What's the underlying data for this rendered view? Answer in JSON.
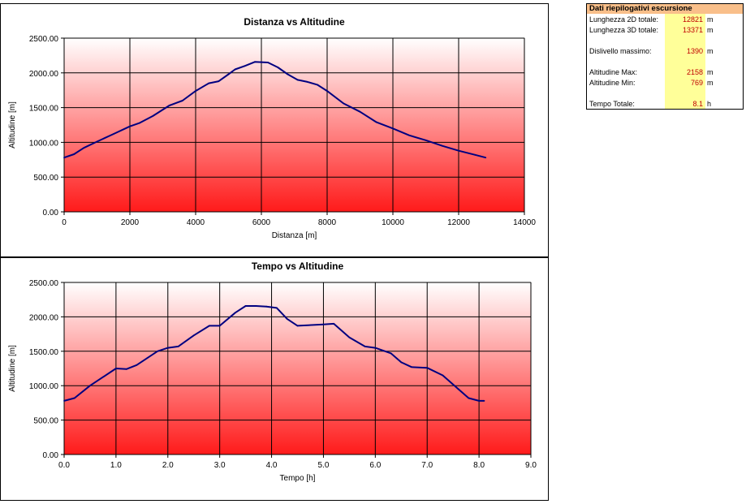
{
  "colors": {
    "line": "#000080",
    "grad_top": "#ffffff",
    "grad_bottom": "#ff1a1a",
    "summary_header": "#f9bf8a",
    "summary_values_bg": "#ffff99",
    "summary_value_text": "#c00000"
  },
  "chart_data": [
    {
      "type": "line",
      "title": "Distanza vs Altitudine",
      "xlabel": "Distanza [m]",
      "ylabel": "Altitudine [m]",
      "xlim": [
        0,
        14000
      ],
      "ylim": [
        0,
        2500
      ],
      "xticks": [
        "0",
        "2000",
        "4000",
        "6000",
        "8000",
        "10000",
        "12000",
        "14000"
      ],
      "yticks": [
        "0.00",
        "500.00",
        "1000.00",
        "1500.00",
        "2000.00",
        "2500.00"
      ],
      "grid": true,
      "series": [
        {
          "x": [
            0,
            300,
            600,
            1000,
            1500,
            2000,
            2300,
            2700,
            3200,
            3600,
            4000,
            4400,
            4700,
            5000,
            5200,
            5500,
            5800,
            6200,
            6500,
            6800,
            7100,
            7400,
            7700,
            8000,
            8500,
            9000,
            9500,
            10000,
            10500,
            11000,
            11500,
            12000,
            12500,
            12821
          ],
          "y": [
            780,
            830,
            920,
            1010,
            1120,
            1230,
            1280,
            1380,
            1530,
            1600,
            1740,
            1850,
            1880,
            1980,
            2050,
            2100,
            2158,
            2150,
            2080,
            1980,
            1900,
            1870,
            1830,
            1740,
            1560,
            1440,
            1290,
            1200,
            1100,
            1030,
            950,
            880,
            820,
            780
          ]
        }
      ]
    },
    {
      "type": "line",
      "title": "Tempo vs Altitudine",
      "xlabel": "Tempo [h]",
      "ylabel": "Altitudine [m]",
      "xlim": [
        0,
        9
      ],
      "ylim": [
        0,
        2500
      ],
      "xticks": [
        "0.0",
        "1.0",
        "2.0",
        "3.0",
        "4.0",
        "5.0",
        "6.0",
        "7.0",
        "8.0",
        "9.0"
      ],
      "yticks": [
        "0.00",
        "500.00",
        "1000.00",
        "1500.00",
        "2000.00",
        "2500.00"
      ],
      "grid": true,
      "series": [
        {
          "x": [
            0,
            0.2,
            0.5,
            0.7,
            1.0,
            1.2,
            1.4,
            1.6,
            1.8,
            2.0,
            2.2,
            2.5,
            2.8,
            3.0,
            3.3,
            3.5,
            3.7,
            3.9,
            4.1,
            4.3,
            4.5,
            5.0,
            5.2,
            5.5,
            5.8,
            6.0,
            6.3,
            6.5,
            6.7,
            7.0,
            7.3,
            7.6,
            7.8,
            8.0,
            8.1
          ],
          "y": [
            780,
            820,
            1000,
            1100,
            1250,
            1240,
            1300,
            1400,
            1500,
            1550,
            1570,
            1730,
            1870,
            1870,
            2060,
            2158,
            2158,
            2150,
            2130,
            1970,
            1870,
            1890,
            1900,
            1700,
            1570,
            1550,
            1470,
            1340,
            1270,
            1260,
            1150,
            950,
            820,
            780,
            780
          ]
        }
      ]
    }
  ],
  "summary": {
    "title": "Dati riepilogativi escursione",
    "rows": [
      {
        "label": "Lunghezza 2D totale:",
        "value": "12821",
        "unit": "m"
      },
      {
        "label": "Lunghezza 3D totale:",
        "value": "13371",
        "unit": "m"
      },
      {
        "label": "Dislivello massimo:",
        "value": "1390",
        "unit": "m"
      },
      {
        "label": "Altitudine Max:",
        "value": "2158",
        "unit": "m"
      },
      {
        "label": "Altitudine Min:",
        "value": "769",
        "unit": "m"
      },
      {
        "label": "Tempo Totale:",
        "value": "8.1",
        "unit": "h"
      }
    ]
  }
}
